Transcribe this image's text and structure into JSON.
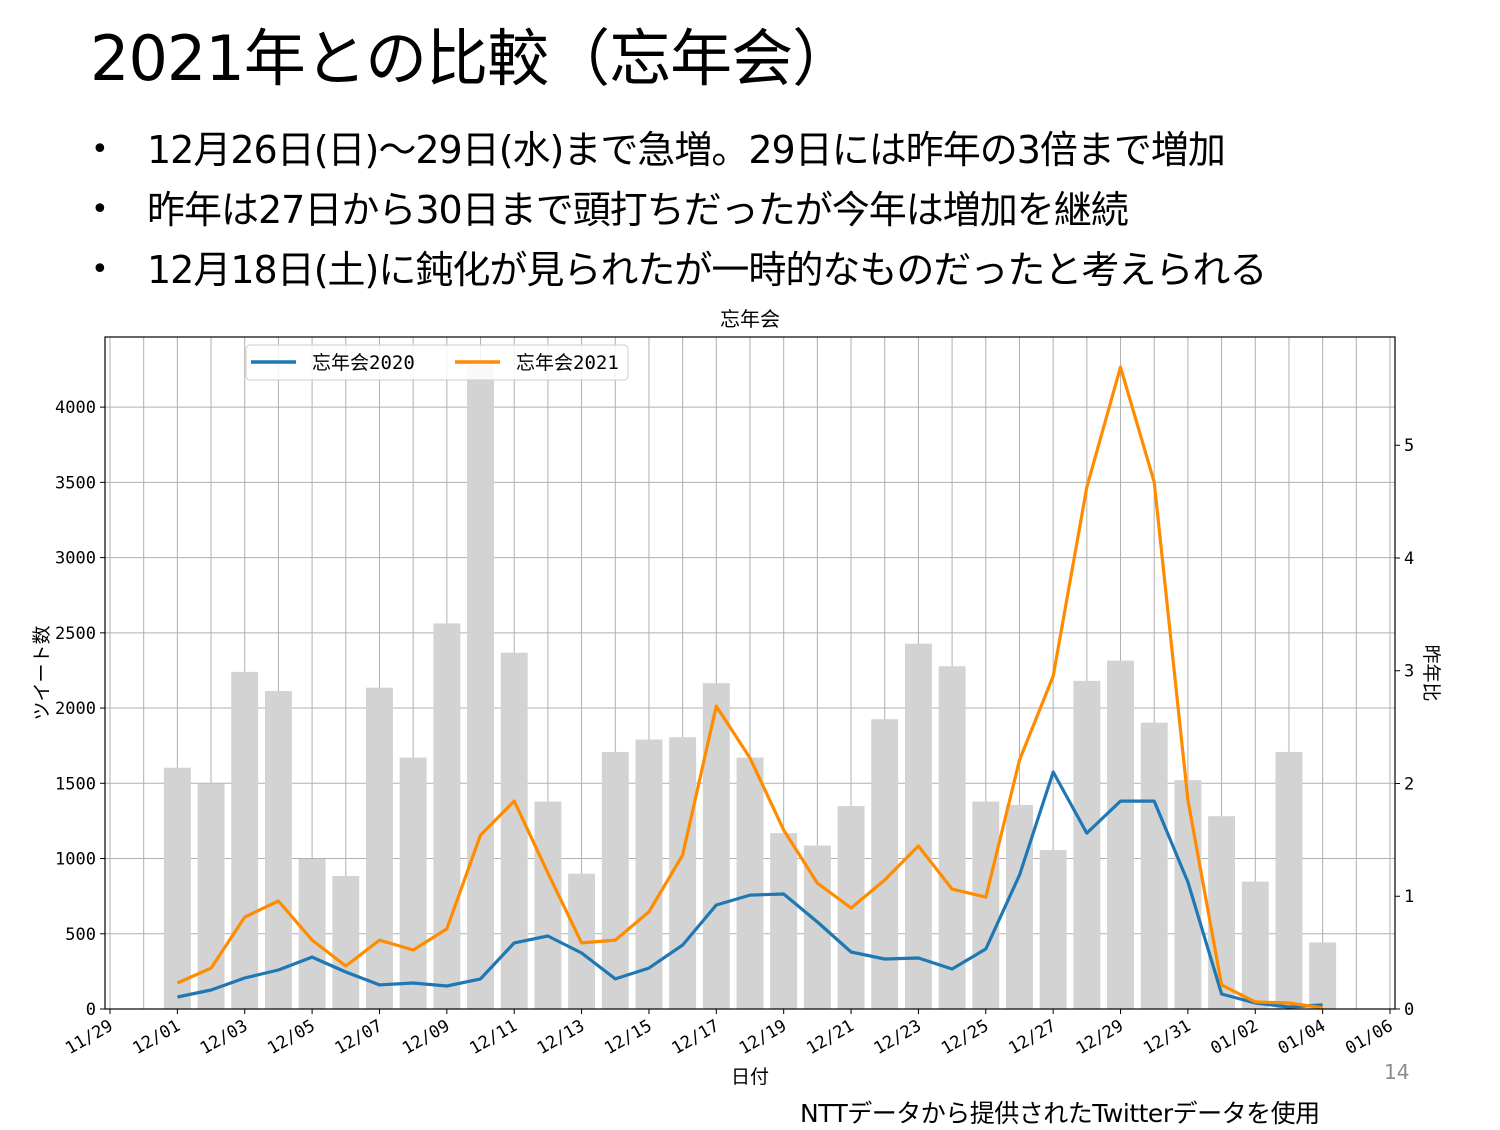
{
  "slide": {
    "title": "2021年との比較（忘年会）",
    "bullets": [
      "12月26日(日)～29日(水)まで急増。29日には昨年の3倍まで増加",
      "昨年は27日から30日まで頭打ちだったが今年は増加を継続",
      "12月18日(土)に鈍化が見られたが一時的なものだったと考えられる"
    ],
    "bullet_symbol": "•",
    "page_number": "14",
    "credit": "NTTデータから提供されたTwitterデータを使用"
  },
  "colors": {
    "series2020": "#1f77b4",
    "series2021": "#ff8c00",
    "bars": "#d3d3d3",
    "grid": "#b0b0b0"
  },
  "chart_data": {
    "type": "line+bar",
    "title": "忘年会",
    "xlabel": "日付",
    "ylabel": "ツイート数",
    "y2label": "昨年比",
    "ylim": [
      0,
      4466
    ],
    "y2lim": [
      0,
      5.96
    ],
    "yticks": [
      "0",
      "500",
      "1000",
      "1500",
      "2000",
      "2500",
      "3000",
      "3500",
      "4000"
    ],
    "y2ticks": [
      "0",
      "1",
      "2",
      "3",
      "4",
      "5"
    ],
    "xticks": [
      "11/29",
      "12/01",
      "12/03",
      "12/05",
      "12/07",
      "12/09",
      "12/11",
      "12/13",
      "12/15",
      "12/17",
      "12/19",
      "12/21",
      "12/23",
      "12/25",
      "12/27",
      "12/29",
      "12/31",
      "01/02",
      "01/04",
      "01/06"
    ],
    "x_start_date": "11/29",
    "x_days": 38,
    "dates": [
      "12/01",
      "12/02",
      "12/03",
      "12/04",
      "12/05",
      "12/06",
      "12/07",
      "12/08",
      "12/09",
      "12/10",
      "12/11",
      "12/12",
      "12/13",
      "12/14",
      "12/15",
      "12/16",
      "12/17",
      "12/18",
      "12/19",
      "12/20",
      "12/21",
      "12/22",
      "12/23",
      "12/24",
      "12/25",
      "12/26",
      "12/27",
      "12/28",
      "12/29",
      "12/30",
      "12/31",
      "01/01",
      "01/02",
      "01/03",
      "01/04"
    ],
    "legend": [
      "忘年会2020",
      "忘年会2021"
    ],
    "legend_position": "top-left",
    "grid": true,
    "series": [
      {
        "name": "忘年会2020",
        "axis": "left",
        "type": "line",
        "values": [
          80,
          126,
          206,
          259,
          345,
          246,
          160,
          173,
          153,
          200,
          439,
          485,
          372,
          200,
          272,
          425,
          691,
          757,
          764,
          578,
          379,
          332,
          339,
          266,
          399,
          890,
          1575,
          1169,
          1382,
          1382,
          844,
          100,
          40,
          13,
          27
        ]
      },
      {
        "name": "忘年会2021",
        "axis": "left",
        "type": "line",
        "values": [
          173,
          272,
          611,
          718,
          458,
          286,
          458,
          392,
          532,
          1156,
          1382,
          904,
          439,
          458,
          645,
          1023,
          2013,
          1668,
          1189,
          837,
          671,
          857,
          1083,
          797,
          744,
          1654,
          2213,
          3468,
          4266,
          3502,
          1389,
          159,
          47,
          40,
          8
        ]
      },
      {
        "name": "昨年比",
        "axis": "right",
        "type": "bar",
        "values": [
          2.14,
          2.0,
          2.99,
          2.82,
          1.33,
          1.18,
          2.85,
          2.23,
          3.42,
          5.73,
          3.16,
          1.84,
          1.2,
          2.28,
          2.39,
          2.41,
          2.89,
          2.23,
          1.56,
          1.45,
          1.8,
          2.57,
          3.24,
          3.04,
          1.84,
          1.81,
          1.41,
          2.91,
          3.09,
          2.54,
          2.03,
          1.71,
          1.13,
          2.28,
          0.59
        ]
      }
    ]
  }
}
